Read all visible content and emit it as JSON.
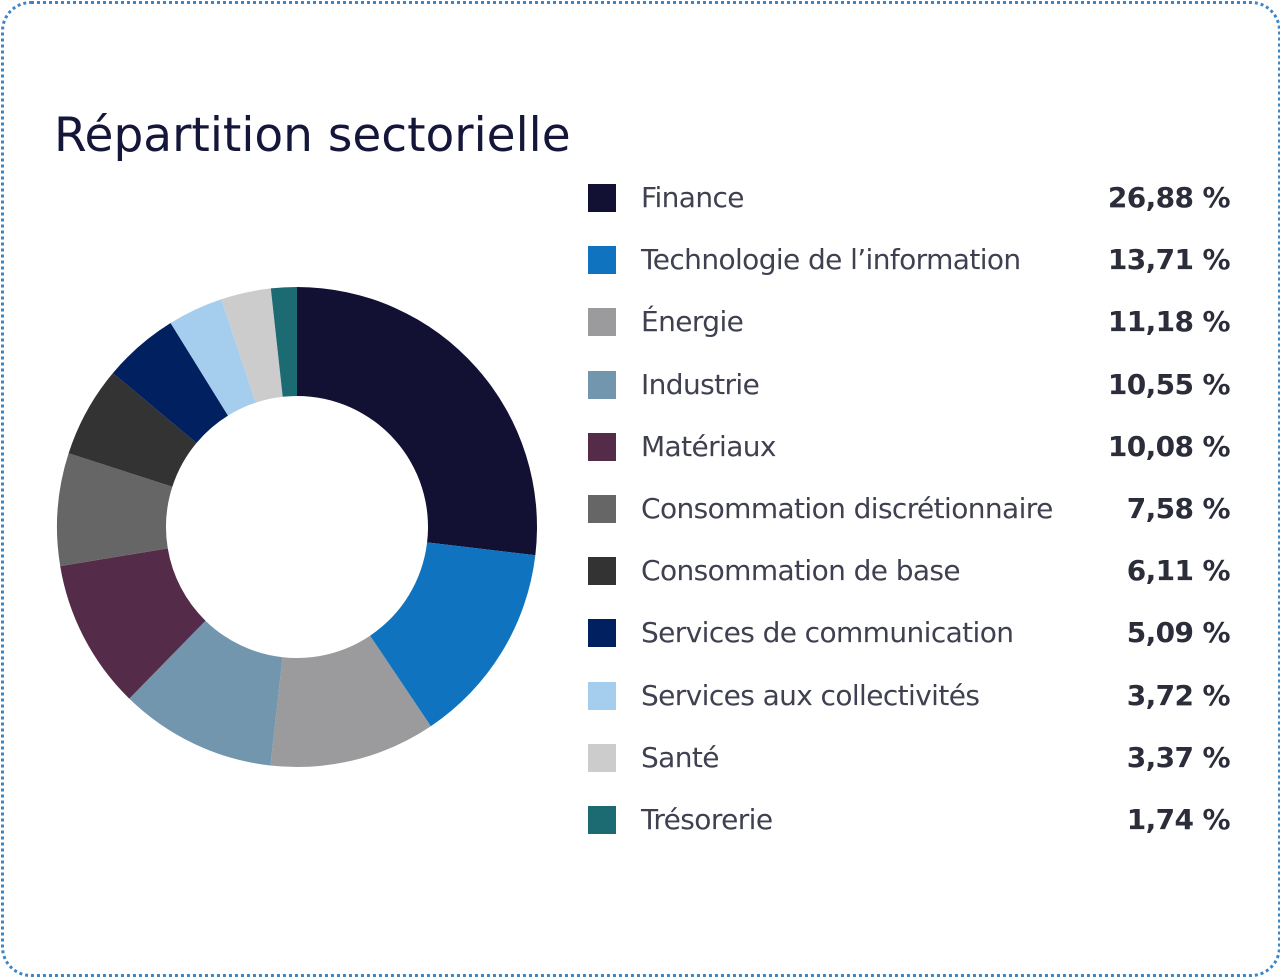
{
  "chart_data": {
    "type": "pie",
    "title": "Répartition sectorielle",
    "legend_position": "right",
    "categories": [
      "Finance",
      "Technologie de l’information",
      "Énergie",
      "Industrie",
      "Matériaux",
      "Consommation discrétionnaire",
      "Consommation de base",
      "Services de communication",
      "Services aux collectivités",
      "Santé",
      "Trésorerie"
    ],
    "values": [
      26.88,
      13.71,
      11.18,
      10.55,
      10.08,
      7.58,
      6.11,
      5.09,
      3.72,
      3.37,
      1.74
    ],
    "value_labels": [
      "26,88 %",
      "13,71 %",
      "11,18 %",
      "10,55 %",
      "10,08 %",
      "7,58 %",
      "6,11 %",
      "5,09 %",
      "3,72 %",
      "3,37 %",
      "1,74 %"
    ],
    "colors": [
      "#121134",
      "#0f73bf",
      "#9b9b9d",
      "#7196ae",
      "#542b48",
      "#666666",
      "#333333",
      "#01205f",
      "#a5cdee",
      "#cccccc",
      "#1d6b72"
    ]
  }
}
